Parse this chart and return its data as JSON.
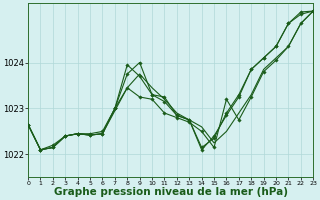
{
  "background_color": "#d6f0f0",
  "plot_bg_color": "#d6f0f0",
  "grid_color": "#b0d8d8",
  "line_color": "#1a5c1a",
  "xlabel": "Graphe pression niveau de la mer (hPa)",
  "xlim": [
    0,
    23
  ],
  "ylim": [
    1021.5,
    1025.3
  ],
  "yticks": [
    1022,
    1023,
    1024
  ],
  "xticks": [
    0,
    1,
    2,
    3,
    4,
    5,
    6,
    7,
    8,
    9,
    10,
    11,
    12,
    13,
    14,
    15,
    16,
    17,
    18,
    19,
    20,
    21,
    22,
    23
  ],
  "series": [
    {
      "y": [
        1022.65,
        1022.1,
        1022.15,
        1022.4,
        1022.45,
        1022.42,
        1022.45,
        1022.95,
        1023.45,
        1023.75,
        1023.45,
        1023.2,
        1022.9,
        1022.75,
        1022.6,
        1022.25,
        1022.5,
        1022.9,
        1023.3,
        1023.85,
        1024.1,
        1024.35,
        1024.85,
        1025.12
      ],
      "marker": false
    },
    {
      "y": [
        1022.65,
        1022.1,
        1022.15,
        1022.4,
        1022.45,
        1022.42,
        1022.45,
        1023.0,
        1023.95,
        1023.7,
        1023.3,
        1023.15,
        1022.85,
        1022.75,
        1022.1,
        1022.4,
        1022.85,
        1023.25,
        1023.85,
        1024.1,
        1024.35,
        1024.85,
        1025.1,
        1025.12
      ],
      "marker": true
    },
    {
      "y": [
        1022.65,
        1022.1,
        1022.15,
        1022.4,
        1022.45,
        1022.42,
        1022.45,
        1023.0,
        1023.75,
        1024.0,
        1023.3,
        1023.25,
        1022.85,
        1022.75,
        1022.15,
        1022.35,
        1022.9,
        1023.3,
        1023.85,
        1024.1,
        1024.35,
        1024.85,
        1025.05,
        1025.12
      ],
      "marker": true
    },
    {
      "y": [
        1022.65,
        1022.1,
        1022.2,
        1022.4,
        1022.45,
        1022.45,
        1022.5,
        1023.0,
        1023.45,
        1023.25,
        1023.2,
        1022.9,
        1022.8,
        1022.7,
        1022.5,
        1022.15,
        1023.2,
        1022.75,
        1023.25,
        1023.8,
        1024.05,
        1024.35,
        1024.85,
        1025.12
      ],
      "marker": true
    }
  ]
}
